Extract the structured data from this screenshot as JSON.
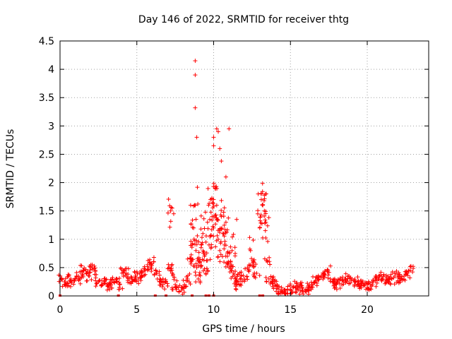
{
  "chart_data": {
    "type": "scatter",
    "title": "Day 146 of 2022, SRMTID for receiver thtg",
    "xlabel": "GPS time / hours",
    "ylabel": "SRMTID / TECUs",
    "xlim": [
      0,
      24
    ],
    "ylim": [
      0,
      4.5
    ],
    "x_ticks": [
      0,
      5,
      10,
      15,
      20
    ],
    "x_tick_labels": [
      "0",
      "5",
      "10",
      "15",
      "20"
    ],
    "y_ticks": [
      0,
      0.5,
      1,
      1.5,
      2,
      2.5,
      3,
      3.5,
      4,
      4.5
    ],
    "y_tick_labels": [
      "0",
      "0.5",
      "1",
      "1.5",
      "2",
      "2.5",
      "3",
      "3.5",
      "4",
      "4.5"
    ],
    "grid": true,
    "marker": "+",
    "color": "#ff0000",
    "series": [
      {
        "name": "SRMTID",
        "x": [
          0.1,
          0.3,
          0.5,
          0.7,
          0.9,
          1.1,
          1.3,
          1.5,
          1.7,
          1.9,
          2.1,
          2.3,
          2.5,
          2.7,
          2.9,
          3.1,
          3.3,
          3.5,
          3.7,
          3.9,
          4.1,
          4.3,
          4.5,
          4.7,
          4.9,
          5.1,
          5.3,
          5.5,
          5.7,
          5.9,
          6.1,
          6.3,
          6.5,
          6.7,
          6.9,
          7.1,
          7.2,
          7.3,
          7.5,
          7.7,
          7.9,
          8.1,
          8.3,
          8.5,
          8.6,
          8.7,
          8.8,
          8.85,
          8.9,
          9.0,
          9.1,
          9.2,
          9.3,
          9.4,
          9.5,
          9.6,
          9.7,
          9.8,
          9.9,
          10.0,
          10.1,
          10.2,
          10.3,
          10.4,
          10.5,
          10.6,
          10.7,
          10.8,
          10.9,
          11.0,
          11.1,
          11.2,
          11.3,
          11.4,
          11.5,
          11.6,
          11.8,
          12.0,
          12.2,
          12.4,
          12.6,
          12.8,
          13.0,
          13.1,
          13.2,
          13.3,
          13.4,
          13.5,
          13.6,
          13.8,
          14.0,
          14.2,
          14.4,
          14.6,
          14.8,
          15.0,
          15.2,
          15.4,
          15.6,
          15.8,
          16.0,
          16.2,
          16.4,
          16.6,
          16.8,
          17.0,
          17.2,
          17.4,
          17.6,
          17.8,
          18.0,
          18.2,
          18.4,
          18.6,
          18.8,
          19.0,
          19.2,
          19.4,
          19.6,
          19.8,
          20.0,
          20.2,
          20.4,
          20.6,
          20.8,
          21.0,
          21.2,
          21.4,
          21.6,
          21.8,
          22.0,
          22.2,
          22.4,
          22.6,
          22.8,
          8.8,
          8.8,
          8.8,
          8.9,
          10.0,
          10.0,
          10.2,
          10.3,
          10.4,
          11.0,
          12.9,
          13.1,
          7.3,
          7.4,
          10.5,
          10.8,
          11.5,
          8.5,
          9.5
        ],
        "y": [
          0.3,
          0.25,
          0.22,
          0.3,
          0.28,
          0.35,
          0.3,
          0.45,
          0.4,
          0.35,
          0.55,
          0.45,
          0.25,
          0.2,
          0.22,
          0.18,
          0.2,
          0.25,
          0.3,
          0.2,
          0.45,
          0.4,
          0.3,
          0.25,
          0.35,
          0.3,
          0.4,
          0.45,
          0.55,
          0.5,
          0.6,
          0.4,
          0.3,
          0.2,
          0.25,
          0.5,
          1.5,
          0.4,
          0.2,
          0.15,
          0.1,
          0.2,
          0.3,
          0.6,
          0.9,
          1.2,
          1.6,
          0.8,
          0.5,
          0.3,
          0.6,
          0.9,
          1.1,
          0.7,
          0.4,
          1.3,
          0.9,
          1.7,
          1.4,
          1.2,
          1.9,
          1.6,
          1.0,
          0.8,
          1.4,
          1.1,
          0.9,
          1.3,
          0.7,
          0.5,
          0.6,
          0.8,
          0.4,
          0.3,
          0.2,
          0.25,
          0.35,
          0.3,
          0.5,
          0.8,
          0.6,
          0.4,
          1.2,
          1.8,
          1.6,
          1.5,
          1.3,
          0.6,
          0.3,
          0.25,
          0.2,
          0.12,
          0.1,
          0.08,
          0.1,
          0.12,
          0.15,
          0.18,
          0.2,
          0.1,
          0.12,
          0.15,
          0.2,
          0.25,
          0.3,
          0.35,
          0.4,
          0.45,
          0.3,
          0.25,
          0.2,
          0.22,
          0.28,
          0.3,
          0.35,
          0.3,
          0.25,
          0.2,
          0.22,
          0.18,
          0.15,
          0.2,
          0.25,
          0.3,
          0.35,
          0.3,
          0.28,
          0.25,
          0.3,
          0.35,
          0.32,
          0.3,
          0.35,
          0.4,
          0.45,
          4.15,
          3.9,
          3.32,
          2.8,
          2.8,
          2.65,
          2.95,
          2.9,
          2.6,
          2.95,
          1.8,
          1.7,
          1.55,
          1.45,
          2.38,
          2.1,
          1.35,
          1.6,
          0.95
        ]
      }
    ],
    "marker_at_zero_x": [
      0.0,
      3.8,
      6.2,
      6.9,
      8.6,
      9.5,
      9.7,
      10.0,
      13.0,
      13.2
    ]
  }
}
